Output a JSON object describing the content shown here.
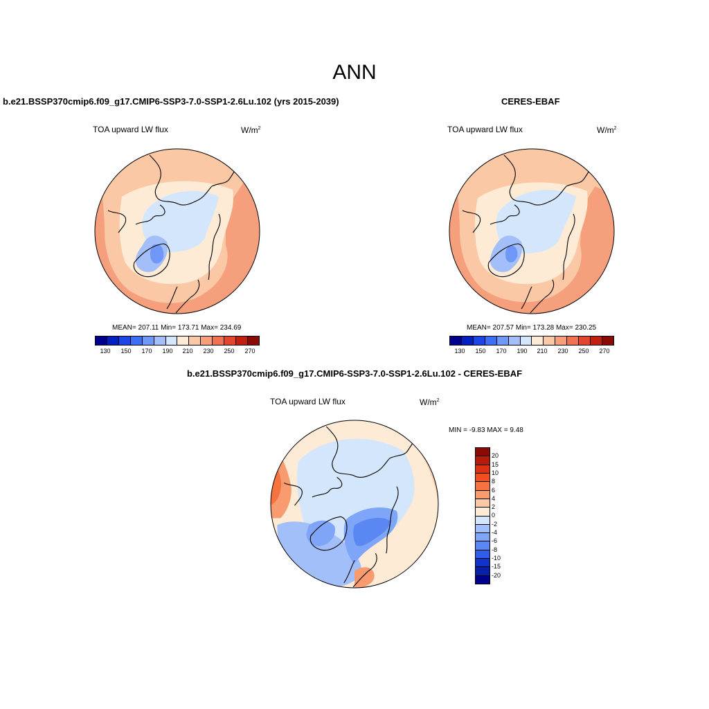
{
  "main_title": "ANN",
  "unit_prefix": "W/m",
  "unit_exp": "2",
  "variable_label": "TOA upward LW flux",
  "panels": [
    {
      "title": "b.e21.BSSP370cmip6.f09_g17.CMIP6-SSP3-7.0-SSP1-2.6Lu.102 (yrs 2015-2039)",
      "stats": "MEAN= 207.11  Min= 173.71  Max= 234.69",
      "mean": 207.11,
      "min": 173.71,
      "max": 234.69
    },
    {
      "title": "CERES-EBAF",
      "stats": "MEAN= 207.57  Min= 173.28  Max= 230.25",
      "mean": 207.57,
      "min": 173.28,
      "max": 230.25
    },
    {
      "title": "b.e21.BSSP370cmip6.f09_g17.CMIP6-SSP3-7.0-SSP1-2.6Lu.102 - CERES-EBAF",
      "stats": "MIN =  -9.83 MAX =   9.48",
      "min": -9.83,
      "max": 9.48
    }
  ],
  "abs_colorbar": {
    "tick_labels": [
      "130",
      "150",
      "170",
      "190",
      "210",
      "230",
      "250",
      "270"
    ],
    "colors": [
      "#00008f",
      "#0020c4",
      "#1c45e8",
      "#3d6ef5",
      "#6f97f7",
      "#a3bff9",
      "#d4e6fb",
      "#fdebd6",
      "#fbc8a6",
      "#f59f7c",
      "#ef7350",
      "#e4452d",
      "#c31f10",
      "#8b0a06"
    ]
  },
  "diff_colorbar": {
    "tick_labels": [
      "20",
      "15",
      "10",
      "8",
      "6",
      "4",
      "2",
      "0",
      "-2",
      "-4",
      "-6",
      "-8",
      "-10",
      "-15",
      "-20"
    ],
    "colors": [
      "#8b0a06",
      "#b81a0a",
      "#dd3014",
      "#f24e1f",
      "#f6723f",
      "#f89c70",
      "#fbc8a6",
      "#fdebd6",
      "#d4e6fb",
      "#a3bff9",
      "#7ea5f7",
      "#5a87f2",
      "#2f5fea",
      "#1033cc",
      "#0a1fa8",
      "#00008f"
    ]
  },
  "chart_data": [
    {
      "type": "heatmap",
      "projection": "north-polar-stereographic",
      "title": "b.e21.BSSP370cmip6.f09_g17.CMIP6-SSP3-7.0-SSP1-2.6Lu.102 (yrs 2015-2039)",
      "variable": "TOA upward LW flux",
      "units": "W/m2",
      "mean": 207.11,
      "min": 173.71,
      "max": 234.69,
      "levels": [
        130,
        140,
        150,
        160,
        170,
        180,
        190,
        200,
        210,
        220,
        230,
        240,
        250,
        260,
        270
      ]
    },
    {
      "type": "heatmap",
      "projection": "north-polar-stereographic",
      "title": "CERES-EBAF",
      "variable": "TOA upward LW flux",
      "units": "W/m2",
      "mean": 207.57,
      "min": 173.28,
      "max": 230.25,
      "levels": [
        130,
        140,
        150,
        160,
        170,
        180,
        190,
        200,
        210,
        220,
        230,
        240,
        250,
        260,
        270
      ]
    },
    {
      "type": "heatmap",
      "projection": "north-polar-stereographic",
      "title": "b.e21.BSSP370cmip6.f09_g17.CMIP6-SSP3-7.0-SSP1-2.6Lu.102 - CERES-EBAF",
      "variable": "TOA upward LW flux",
      "units": "W/m2",
      "min": -9.83,
      "max": 9.48,
      "levels": [
        -20,
        -15,
        -10,
        -8,
        -6,
        -4,
        -2,
        0,
        2,
        4,
        6,
        8,
        10,
        15,
        20
      ]
    }
  ]
}
